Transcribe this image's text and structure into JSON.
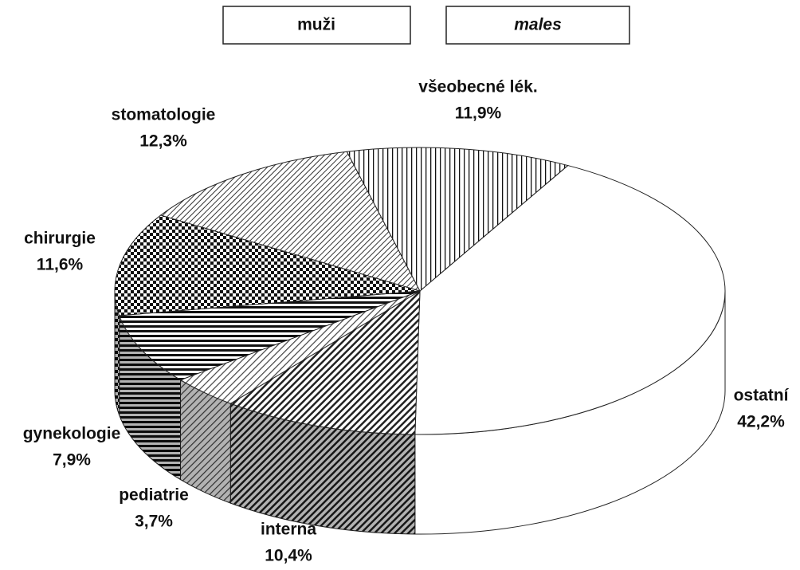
{
  "chart_data": {
    "type": "pie",
    "title": "muži",
    "subtitle": "males",
    "categories": [
      "ostatní",
      "interna",
      "pediatrie",
      "gynekologie",
      "chirurgie",
      "stomatologie",
      "všeobecné lék."
    ],
    "values": [
      42.2,
      10.4,
      3.7,
      7.9,
      11.6,
      12.3,
      11.9
    ],
    "value_labels": [
      "42,2%",
      "10,4%",
      "3,7%",
      "7,9%",
      "11,6%",
      "12,3%",
      "11,9%"
    ]
  }
}
